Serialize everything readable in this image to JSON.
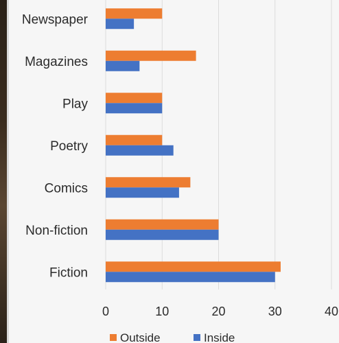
{
  "chart_data": {
    "type": "bar",
    "orientation": "horizontal",
    "categories": [
      "Newspaper",
      "Magazines",
      "Play",
      "Poetry",
      "Comics",
      "Non-fiction",
      "Fiction"
    ],
    "series": [
      {
        "name": "Outside",
        "color": "#ed7d31",
        "values": [
          10,
          16,
          10,
          10,
          15,
          20,
          31
        ]
      },
      {
        "name": "Inside",
        "color": "#4472c4",
        "values": [
          5,
          6,
          10,
          12,
          13,
          20,
          30
        ]
      }
    ],
    "xlim": [
      0,
      40
    ],
    "xticks": [
      0,
      10,
      20,
      30,
      40
    ],
    "grid": true,
    "legend": "bottom"
  }
}
